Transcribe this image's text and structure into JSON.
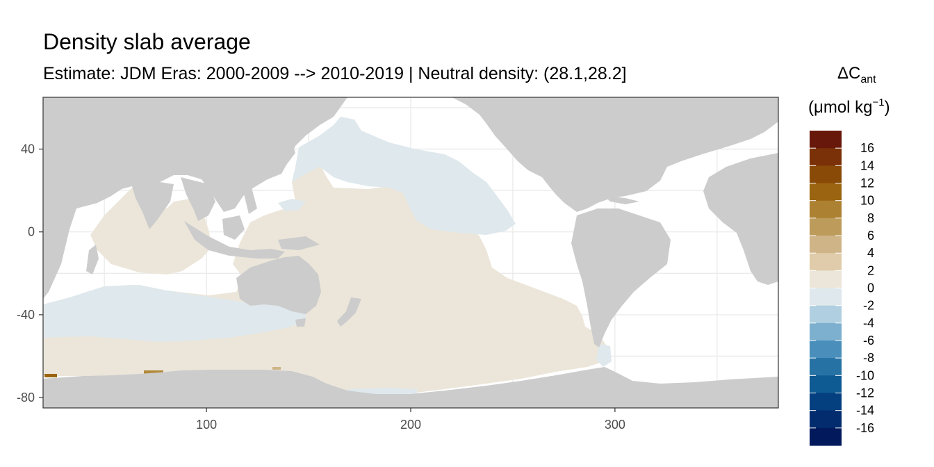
{
  "chart_data": {
    "type": "heatmap",
    "title": "Density slab average",
    "subtitle": "Estimate: JDM Eras: 2000-2009 --> 2010-2019 | Neutral density: (28.1,28.2]",
    "xlim": [
      20,
      380
    ],
    "ylim": [
      -85,
      65
    ],
    "x_ticks": [
      100,
      200,
      300
    ],
    "y_ticks": [
      40,
      0,
      -40,
      -80
    ],
    "grid": true,
    "legend": {
      "placement": "right",
      "title_line1_base": "ΔC",
      "title_line1_sub": "ant",
      "title_line2_base": "(μmol kg",
      "title_line2_sup": "−1",
      "title_line2_end": ")",
      "breaks": [
        16,
        14,
        12,
        10,
        8,
        6,
        4,
        2,
        0,
        -2,
        -4,
        -6,
        -8,
        -10,
        -12,
        -14,
        -16
      ],
      "break_labels": [
        "16",
        "14",
        "12",
        "10",
        "8",
        "6",
        "4",
        "2",
        "0",
        "-2",
        "-4",
        "-6",
        "-8",
        "-10",
        "-12",
        "-14",
        "-16"
      ],
      "colors": [
        "#67180a",
        "#7a3107",
        "#8a4a07",
        "#9a6410",
        "#ac8132",
        "#bd9b5b",
        "#cfb487",
        "#e0ccaa",
        "#ece6da",
        "#dfe8ec",
        "#b0cfe0",
        "#7cb0ce",
        "#4a8fbb",
        "#2772a5",
        "#0e5a92",
        "#043f80",
        "#022c6e",
        "#021a5c"
      ]
    },
    "land_color": "#cccccc",
    "ocean_nodata_color": "#ffffff",
    "regions": [
      {
        "name": "Indian & Pacific positive (0 to 2)",
        "bin": "0 to 2",
        "color": "#ece6da"
      },
      {
        "name": "North Pacific negative (-2 to 0)",
        "bin": "-2 to 0",
        "color": "#dfe8ec"
      },
      {
        "name": "Southern Indian negative (-2 to 0)",
        "bin": "-2 to 0",
        "color": "#dfe8ec"
      },
      {
        "name": "Antarctic margin spots (8 to 12)",
        "bin": "8 to 12",
        "color": "#a8822f"
      }
    ]
  }
}
